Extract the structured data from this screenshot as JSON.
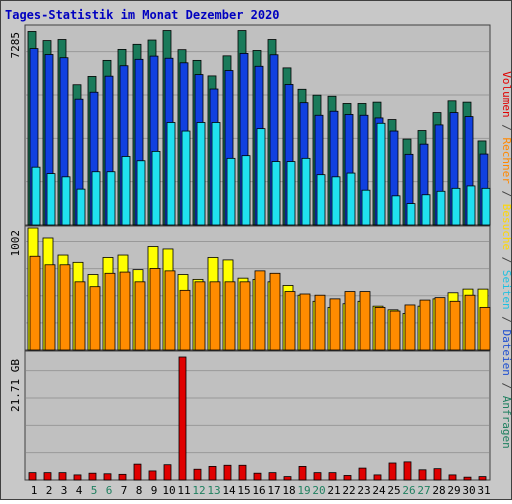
{
  "chart_title": "Tages-Statistik im Monat Dezember 2020",
  "right_legend": [
    {
      "text": "Volumen",
      "color": "#e00000"
    },
    {
      "text": " / ",
      "color": "#444444"
    },
    {
      "text": "Rechner",
      "color": "#ff8800"
    },
    {
      "text": " / ",
      "color": "#444444"
    },
    {
      "text": "Besuche",
      "color": "#ffd800"
    },
    {
      "text": " / ",
      "color": "#444444"
    },
    {
      "text": "Seiten",
      "color": "#20c0e0"
    },
    {
      "text": " / ",
      "color": "#444444"
    },
    {
      "text": "Dateien",
      "color": "#2050d0"
    },
    {
      "text": " / ",
      "color": "#444444"
    },
    {
      "text": "Anfragen",
      "color": "#208060"
    }
  ],
  "colors": {
    "background": "#c8c8c8",
    "plot_background": "#c0c0c0",
    "title": "#0000c0",
    "anfragen": "#1a7a5a",
    "dateien": "#1040e0",
    "seiten": "#20e0f0",
    "besuche": "#ffff00",
    "rechner": "#ff8c00",
    "volumen": "#e00000",
    "weekend_label": "#208060",
    "weekday_label": "#000000"
  },
  "x_labels": [
    "1",
    "2",
    "3",
    "4",
    "5",
    "6",
    "7",
    "8",
    "9",
    "10",
    "11",
    "12",
    "13",
    "14",
    "15",
    "16",
    "17",
    "18",
    "19",
    "20",
    "21",
    "22",
    "23",
    "24",
    "25",
    "26",
    "27",
    "28",
    "29",
    "30",
    "31"
  ],
  "weekend_days": [
    5,
    6,
    12,
    13,
    19,
    20,
    26,
    27
  ],
  "chart_data": [
    {
      "type": "bar",
      "ylabel": "7285",
      "ylim": [
        0,
        7285
      ],
      "categories": [
        "1",
        "2",
        "3",
        "4",
        "5",
        "6",
        "7",
        "8",
        "9",
        "10",
        "11",
        "12",
        "13",
        "14",
        "15",
        "16",
        "17",
        "18",
        "19",
        "20",
        "21",
        "22",
        "23",
        "24",
        "25",
        "26",
        "27",
        "28",
        "29",
        "30",
        "31"
      ],
      "series": [
        {
          "values": [
            7230,
            6890,
            6930,
            5240,
            5550,
            6150,
            6560,
            6750,
            6910,
            7265,
            6550,
            6150,
            5570,
            6320,
            7265,
            6520,
            6930,
            5870,
            5070,
            4850,
            4810,
            4540,
            4540,
            4590,
            3940,
            3210,
            3530,
            4200,
            4640,
            4590,
            3140
          ]
        },
        {
          "values": [
            6590,
            6370,
            6250,
            4700,
            4960,
            5560,
            5950,
            6190,
            6310,
            6230,
            6060,
            5620,
            5080,
            5770,
            6410,
            5930,
            6360,
            5250,
            4570,
            4100,
            4250,
            4130,
            4100,
            4000,
            3510,
            2640,
            3020,
            3740,
            4200,
            4050,
            2650
          ]
        },
        {
          "values": [
            2160,
            1920,
            1800,
            1340,
            1990,
            1990,
            2560,
            2400,
            2750,
            3830,
            3510,
            3830,
            3830,
            2490,
            2590,
            3600,
            2370,
            2370,
            2490,
            1880,
            1800,
            1940,
            1300,
            3800,
            1090,
            800,
            1130,
            1260,
            1370,
            1460,
            1370
          ]
        }
      ]
    },
    {
      "type": "bar",
      "ylabel": "1002",
      "ylim": [
        0,
        1002
      ],
      "categories": [
        "1",
        "2",
        "3",
        "4",
        "5",
        "6",
        "7",
        "8",
        "9",
        "10",
        "11",
        "12",
        "13",
        "14",
        "15",
        "16",
        "17",
        "18",
        "19",
        "20",
        "21",
        "22",
        "23",
        "24",
        "25",
        "26",
        "27",
        "28",
        "29",
        "30",
        "31"
      ],
      "series": [
        {
          "values": [
            1002,
            920,
            780,
            720,
            620,
            760,
            780,
            660,
            850,
            830,
            620,
            580,
            760,
            740,
            590,
            580,
            560,
            530,
            450,
            400,
            350,
            380,
            400,
            360,
            330,
            300,
            360,
            420,
            470,
            500,
            500
          ]
        },
        {
          "values": [
            770,
            700,
            700,
            560,
            520,
            630,
            640,
            560,
            670,
            650,
            490,
            560,
            560,
            560,
            560,
            650,
            630,
            480,
            460,
            450,
            420,
            480,
            480,
            350,
            320,
            370,
            410,
            430,
            400,
            450,
            350
          ]
        }
      ]
    },
    {
      "type": "bar",
      "ylabel": "21.71 GB",
      "ylim": [
        0,
        21.71
      ],
      "categories": [
        "1",
        "2",
        "3",
        "4",
        "5",
        "6",
        "7",
        "8",
        "9",
        "10",
        "11",
        "12",
        "13",
        "14",
        "15",
        "16",
        "17",
        "18",
        "19",
        "20",
        "21",
        "22",
        "23",
        "24",
        "25",
        "26",
        "27",
        "28",
        "29",
        "30",
        "31"
      ],
      "series": [
        {
          "values": [
            1.3,
            1.3,
            1.3,
            0.9,
            1.2,
            1.1,
            1.0,
            2.8,
            1.6,
            2.7,
            21.71,
            1.9,
            2.4,
            2.6,
            2.6,
            1.2,
            1.3,
            0.6,
            2.4,
            1.3,
            1.3,
            0.8,
            2.1,
            0.9,
            3.0,
            3.2,
            1.8,
            2.0,
            0.9,
            0.5,
            0.6
          ]
        }
      ]
    }
  ]
}
